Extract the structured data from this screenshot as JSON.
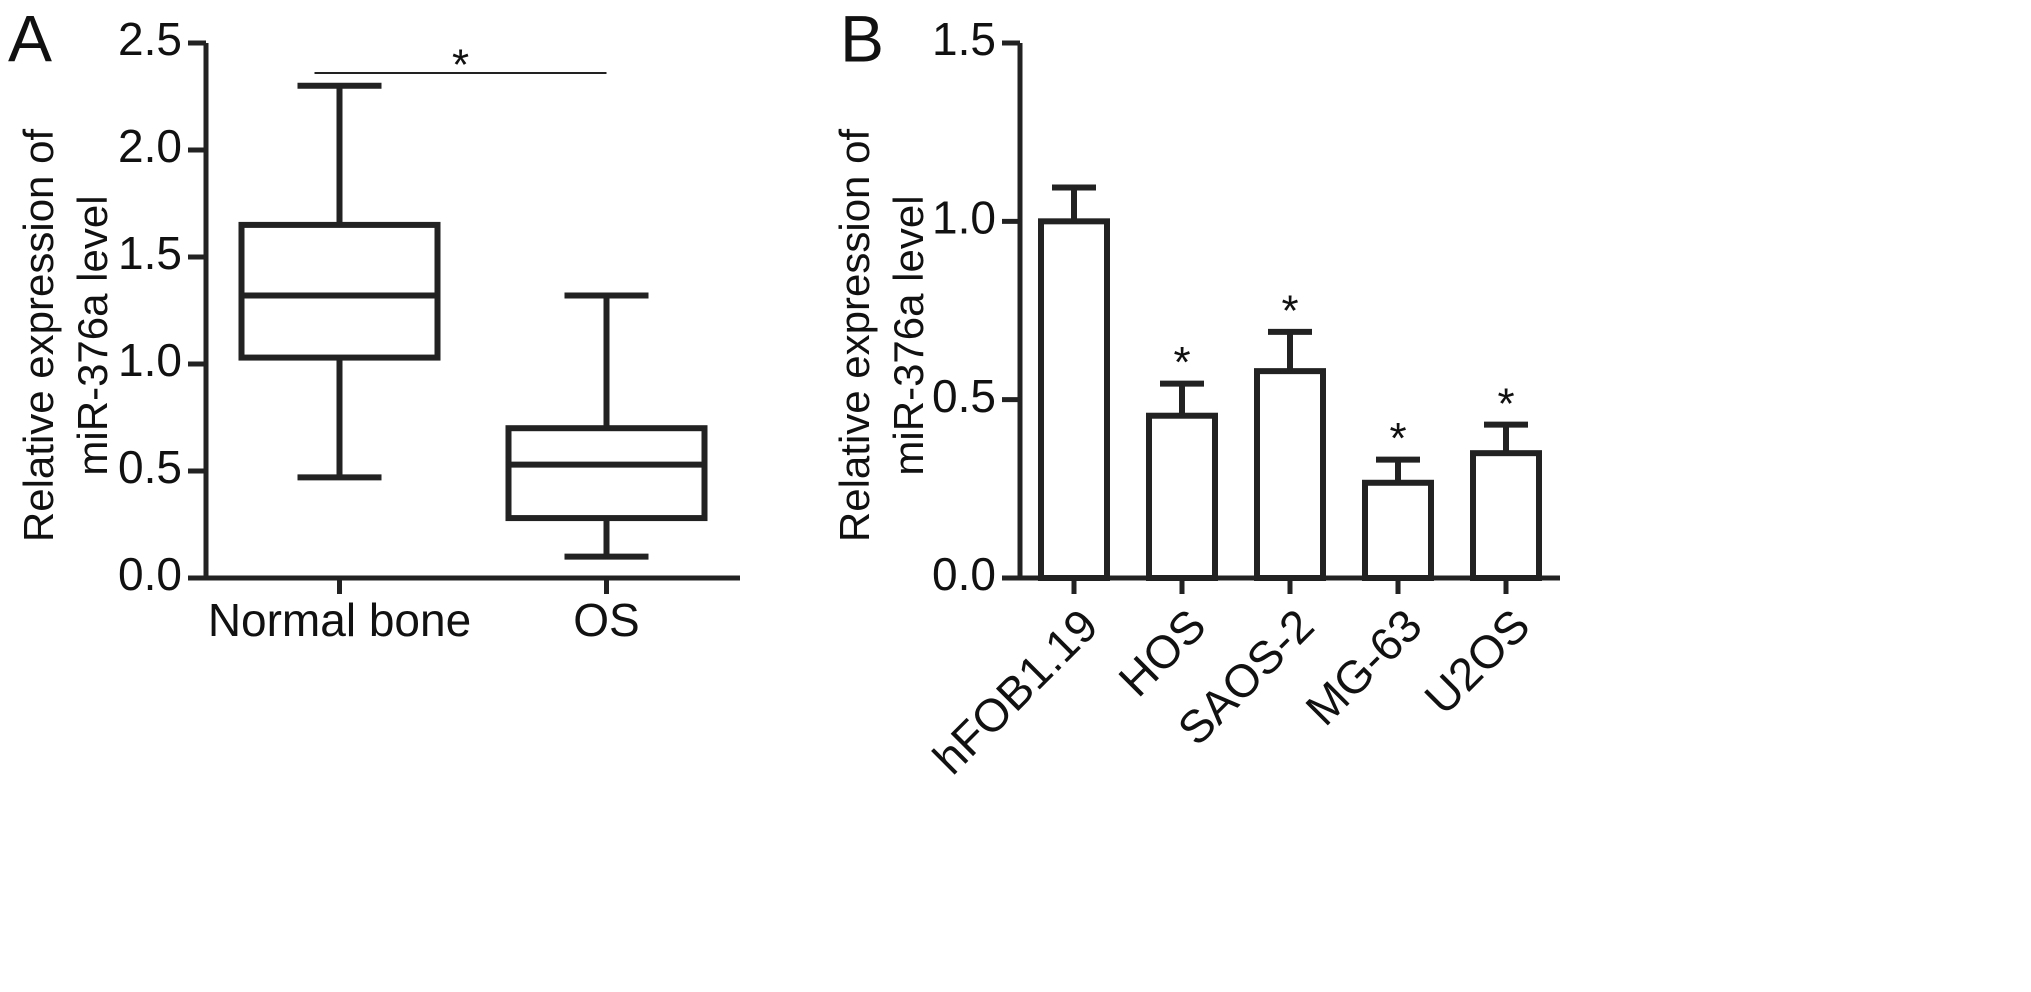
{
  "chart_data": [
    {
      "type": "box",
      "panel_label": "A",
      "ylabel": [
        "Relative expression of",
        "miR-376a level"
      ],
      "categories": [
        "Normal bone",
        "OS"
      ],
      "boxes": [
        {
          "min": 0.47,
          "q1": 1.03,
          "median": 1.32,
          "q3": 1.65,
          "max": 2.3
        },
        {
          "min": 0.1,
          "q1": 0.28,
          "median": 0.53,
          "q3": 0.7,
          "max": 1.32
        }
      ],
      "color": "#222222",
      "annotation": "*",
      "ylim": [
        0,
        2.5
      ],
      "yticks": [
        {
          "value": 0,
          "label": "0.0"
        },
        0.5,
        {
          "value": 1,
          "label": "1.0"
        },
        1.5,
        {
          "value": 2,
          "label": "2.0"
        },
        2.5
      ]
    },
    {
      "type": "bar",
      "panel_label": "B",
      "ylabel": [
        "Relative expression of",
        "miR-376a level"
      ],
      "categories": [
        "hFOB1.19",
        "HOS",
        "SAOS-2",
        "MG-63",
        "U2OS"
      ],
      "values": [
        1.0,
        0.455,
        0.58,
        0.267,
        0.35
      ],
      "errors": [
        0.095,
        0.09,
        0.11,
        0.065,
        0.08
      ],
      "significance": [
        null,
        "*",
        "*",
        "*",
        "*"
      ],
      "color": "#222222",
      "ylim": [
        0,
        1.5
      ],
      "yticks": [
        {
          "value": 0,
          "label": "0.0"
        },
        0.5,
        {
          "value": 1,
          "label": "1.0"
        },
        1.5
      ]
    }
  ]
}
